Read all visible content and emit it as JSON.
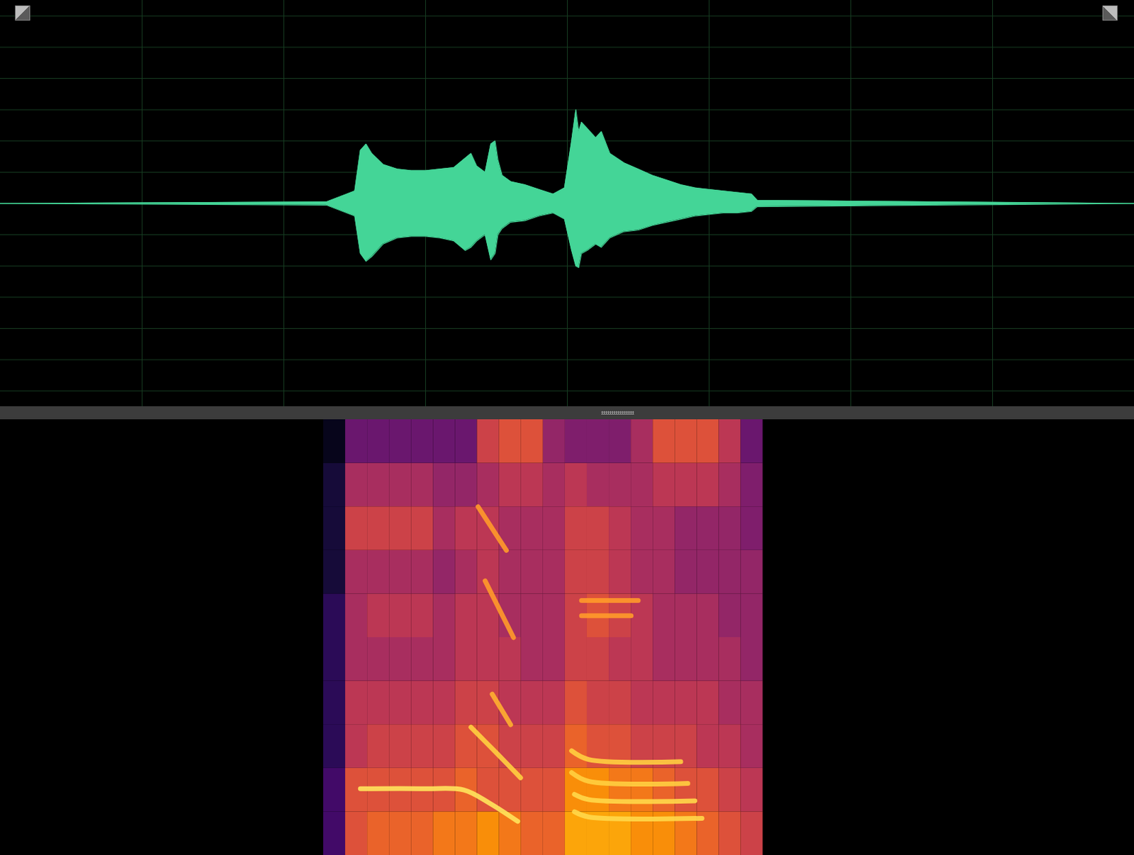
{
  "chart_data": [
    {
      "type": "area",
      "color": "#44d597",
      "grid": true,
      "tick_labels": false,
      "xlim": [
        0,
        8
      ],
      "xticks": [
        1,
        2,
        3,
        4,
        5,
        6,
        7
      ],
      "ylim": [
        -6.5,
        6.5
      ],
      "yticks": [
        -6,
        -5,
        -4,
        -3,
        -2,
        -1,
        0,
        1,
        2,
        3,
        4,
        5,
        6
      ],
      "x": [
        0,
        2.3,
        2.5,
        2.54,
        2.58,
        2.62,
        2.7,
        2.8,
        2.9,
        3.0,
        3.1,
        3.2,
        3.28,
        3.32,
        3.36,
        3.42,
        3.46,
        3.49,
        3.51,
        3.54,
        3.6,
        3.7,
        3.8,
        3.9,
        3.98,
        4.03,
        4.06,
        4.08,
        4.1,
        4.14,
        4.2,
        4.24,
        4.3,
        4.4,
        4.5,
        4.6,
        4.7,
        4.8,
        4.9,
        5.0,
        5.1,
        5.2,
        5.3,
        5.34,
        8
      ],
      "upper": [
        0,
        0.05,
        0.4,
        1.7,
        1.9,
        1.6,
        1.25,
        1.1,
        1.05,
        1.05,
        1.1,
        1.15,
        1.45,
        1.6,
        1.2,
        1.0,
        1.9,
        2.0,
        1.4,
        0.9,
        0.7,
        0.6,
        0.45,
        0.3,
        0.5,
        2.0,
        3.0,
        2.3,
        2.6,
        2.4,
        2.1,
        2.3,
        1.6,
        1.3,
        1.1,
        0.9,
        0.75,
        0.6,
        0.5,
        0.45,
        0.4,
        0.35,
        0.3,
        0.1,
        0
      ],
      "lower": [
        0,
        -0.05,
        -0.4,
        -1.6,
        -1.85,
        -1.7,
        -1.3,
        -1.1,
        -1.05,
        -1.05,
        -1.1,
        -1.2,
        -1.5,
        -1.4,
        -1.2,
        -1.0,
        -1.8,
        -1.6,
        -1.0,
        -0.8,
        -0.6,
        -0.55,
        -0.4,
        -0.3,
        -0.5,
        -1.5,
        -2.0,
        -2.05,
        -1.6,
        -1.5,
        -1.3,
        -1.4,
        -1.1,
        -0.9,
        -0.85,
        -0.7,
        -0.6,
        -0.5,
        -0.4,
        -0.35,
        -0.3,
        -0.3,
        -0.25,
        -0.1,
        0
      ]
    },
    {
      "type": "heatmap",
      "tick_labels": false,
      "xlim": [
        0,
        8
      ],
      "ylim": [
        0,
        1
      ],
      "clim": [
        0,
        1
      ],
      "cell_x": [
        2.28,
        2.435,
        2.59,
        2.745,
        2.9,
        3.055,
        3.21,
        3.365,
        3.52,
        3.675,
        3.83,
        3.985,
        4.14,
        4.295,
        4.45,
        4.605,
        4.76,
        4.915,
        5.07,
        5.225,
        5.38
      ],
      "cell_y": [
        0,
        0.1,
        0.2,
        0.3,
        0.4,
        0.5,
        0.6,
        0.7,
        0.8,
        0.9,
        1.0
      ],
      "cells": [
        [
          0.2,
          0.6,
          0.65,
          0.65,
          0.65,
          0.7,
          0.7,
          0.75,
          0.7,
          0.65,
          0.65,
          0.8,
          0.8,
          0.8,
          0.75,
          0.75,
          0.7,
          0.65,
          0.6,
          0.55
        ],
        [
          0.2,
          0.6,
          0.6,
          0.6,
          0.6,
          0.6,
          0.65,
          0.6,
          0.6,
          0.6,
          0.6,
          0.75,
          0.75,
          0.7,
          0.7,
          0.65,
          0.6,
          0.6,
          0.55,
          0.5
        ],
        [
          0.15,
          0.5,
          0.55,
          0.55,
          0.55,
          0.55,
          0.6,
          0.6,
          0.55,
          0.55,
          0.55,
          0.65,
          0.6,
          0.6,
          0.55,
          0.55,
          0.55,
          0.5,
          0.5,
          0.45
        ],
        [
          0.15,
          0.5,
          0.5,
          0.5,
          0.5,
          0.5,
          0.55,
          0.55,
          0.5,
          0.5,
          0.5,
          0.6,
          0.55,
          0.55,
          0.5,
          0.5,
          0.5,
          0.5,
          0.45,
          0.45
        ],
        [
          0.15,
          0.45,
          0.45,
          0.45,
          0.45,
          0.45,
          0.5,
          0.5,
          0.5,
          0.45,
          0.45,
          0.55,
          0.55,
          0.5,
          0.5,
          0.45,
          0.45,
          0.45,
          0.45,
          0.4
        ],
        [
          0.15,
          0.45,
          0.5,
          0.5,
          0.5,
          0.45,
          0.5,
          0.5,
          0.45,
          0.45,
          0.45,
          0.55,
          0.6,
          0.55,
          0.5,
          0.45,
          0.45,
          0.45,
          0.4,
          0.4
        ],
        [
          0.1,
          0.45,
          0.45,
          0.45,
          0.45,
          0.4,
          0.45,
          0.5,
          0.45,
          0.45,
          0.45,
          0.55,
          0.55,
          0.5,
          0.45,
          0.45,
          0.4,
          0.4,
          0.4,
          0.4
        ],
        [
          0.1,
          0.55,
          0.55,
          0.55,
          0.55,
          0.45,
          0.5,
          0.5,
          0.45,
          0.45,
          0.45,
          0.55,
          0.55,
          0.5,
          0.45,
          0.45,
          0.4,
          0.4,
          0.4,
          0.35
        ],
        [
          0.1,
          0.45,
          0.45,
          0.45,
          0.45,
          0.4,
          0.4,
          0.45,
          0.5,
          0.5,
          0.45,
          0.5,
          0.45,
          0.45,
          0.45,
          0.5,
          0.5,
          0.5,
          0.45,
          0.35
        ],
        [
          0.05,
          0.3,
          0.3,
          0.3,
          0.3,
          0.3,
          0.3,
          0.55,
          0.6,
          0.6,
          0.4,
          0.35,
          0.35,
          0.35,
          0.45,
          0.6,
          0.6,
          0.6,
          0.5,
          0.3
        ]
      ],
      "tracks": [
        {
          "x": [
            2.54,
            3.0,
            3.27,
            3.45,
            3.65
          ],
          "values": [
            0.153,
            0.153,
            0.15,
            0.12,
            0.078
          ],
          "color": "#ffe45c"
        },
        {
          "x": [
            3.32,
            3.5,
            3.67
          ],
          "values": [
            0.294,
            0.235,
            0.178
          ],
          "color": "#ffcf40"
        },
        {
          "x": [
            3.37,
            3.57
          ],
          "values": [
            0.8,
            0.7
          ],
          "color": "#ff9a2a"
        },
        {
          "x": [
            3.42,
            3.62
          ],
          "values": [
            0.63,
            0.5
          ],
          "color": "#ff9a2a"
        },
        {
          "x": [
            3.47,
            3.6
          ],
          "values": [
            0.37,
            0.3
          ],
          "color": "#ffb030"
        },
        {
          "x": [
            4.03,
            4.15,
            4.8
          ],
          "values": [
            0.24,
            0.22,
            0.215
          ],
          "color": "#ffcf40"
        },
        {
          "x": [
            4.03,
            4.15,
            4.85
          ],
          "values": [
            0.19,
            0.17,
            0.165
          ],
          "color": "#ffcf40"
        },
        {
          "x": [
            4.05,
            4.15,
            4.9
          ],
          "values": [
            0.14,
            0.128,
            0.125
          ],
          "color": "#ffd84a"
        },
        {
          "x": [
            4.05,
            4.15,
            4.95
          ],
          "values": [
            0.1,
            0.088,
            0.085
          ],
          "color": "#ffd84a"
        },
        {
          "x": [
            4.1,
            4.5
          ],
          "values": [
            0.585,
            0.585
          ],
          "color": "#ff9a2a"
        },
        {
          "x": [
            4.1,
            4.45
          ],
          "values": [
            0.55,
            0.55
          ],
          "color": "#ff9a2a"
        }
      ]
    }
  ]
}
